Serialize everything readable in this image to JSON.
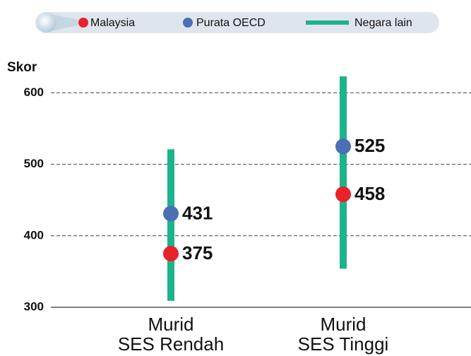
{
  "chart_data": {
    "type": "dotrange",
    "y_label": "Skor",
    "categories": [
      [
        "Murid",
        "SES Rendah"
      ],
      [
        "Murid",
        "SES Tinggi"
      ]
    ],
    "series": [
      {
        "name": "Malaysia",
        "color": "#e8212b",
        "values": [
          375,
          458
        ]
      },
      {
        "name": "Purata OECD",
        "color": "#4a6fb5",
        "values": [
          431,
          525
        ]
      },
      {
        "name": "Negara lain",
        "color": "#1db38a",
        "low": [
          309,
          354
        ],
        "high": [
          521,
          623
        ]
      }
    ],
    "ylim": [
      300,
      630
    ],
    "yticks": [
      300,
      400,
      500,
      600
    ],
    "grid": true
  }
}
